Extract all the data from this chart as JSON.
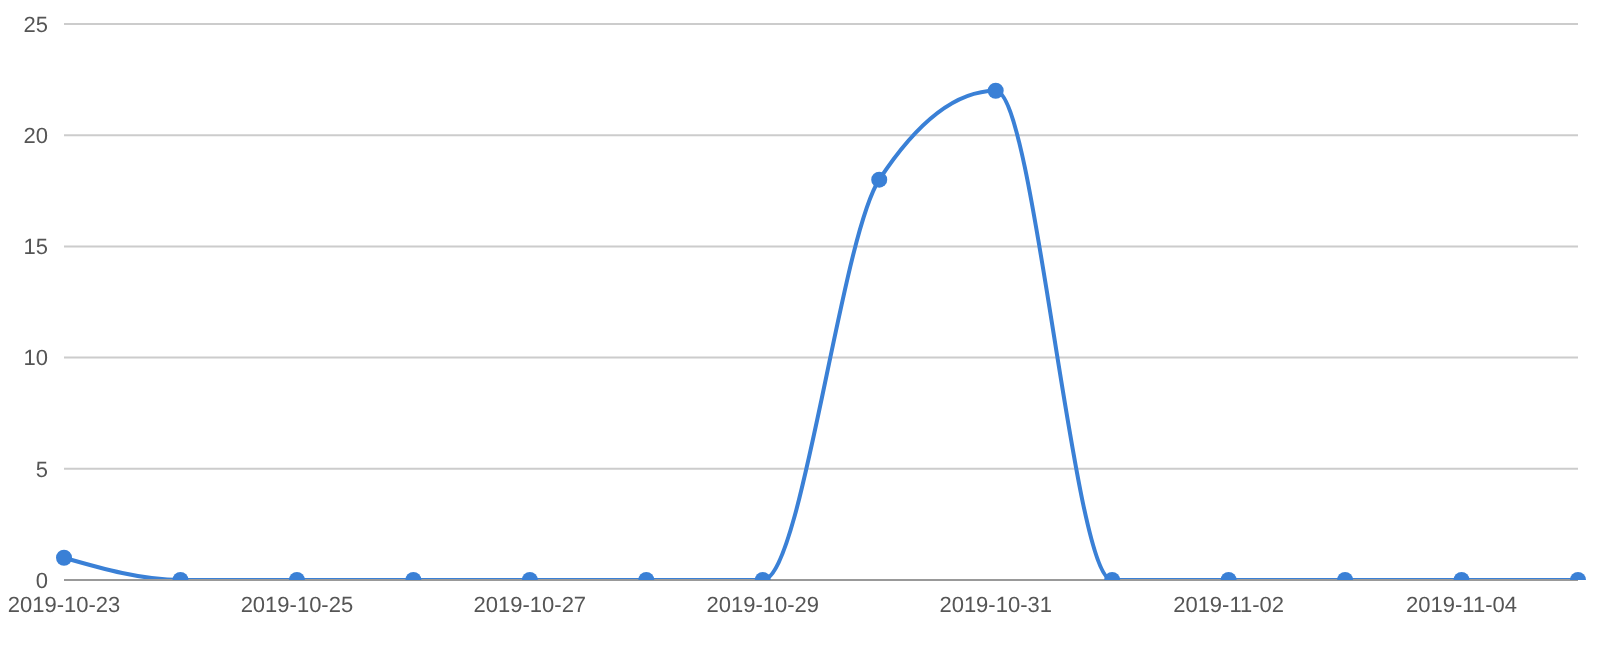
{
  "chart_data": {
    "type": "line",
    "categories": [
      "2019-10-23",
      null,
      "2019-10-25",
      null,
      "2019-10-27",
      null,
      "2019-10-29",
      null,
      "2019-10-31",
      null,
      "2019-11-02",
      null,
      "2019-11-04",
      null
    ],
    "series": [
      {
        "color": "#3a80d6",
        "values": [
          1,
          0,
          0,
          0,
          0,
          0,
          0,
          18,
          22,
          0,
          0,
          0,
          0,
          0
        ]
      }
    ],
    "ylim": [
      0,
      25
    ],
    "yticks": [
      0,
      5,
      10,
      15,
      20,
      25
    ],
    "grid": "y",
    "marker": "circle",
    "line_style": "solid"
  }
}
